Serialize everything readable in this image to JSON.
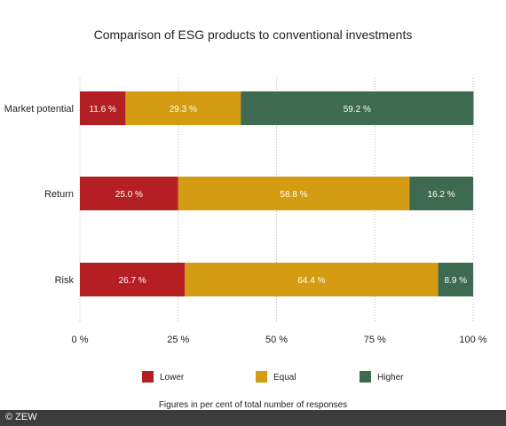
{
  "chart_data": {
    "type": "bar",
    "orientation": "horizontal",
    "stacked": true,
    "title": "Comparison of ESG products to conventional investments",
    "categories": [
      "Market potential",
      "Return",
      "Risk"
    ],
    "series": [
      {
        "name": "Lower",
        "values": [
          11.6,
          25.0,
          26.7
        ],
        "labels": [
          "11.6 %",
          "25.0 %",
          "26.7 %"
        ],
        "color": "#b41f24"
      },
      {
        "name": "Equal",
        "values": [
          29.3,
          58.8,
          64.4
        ],
        "labels": [
          "29.3 %",
          "58.8 %",
          "64.4 %"
        ],
        "color": "#d39c12"
      },
      {
        "name": "Higher",
        "values": [
          59.2,
          16.2,
          8.9
        ],
        "labels": [
          "59.2 %",
          "16.2 %",
          "8.9 %"
        ],
        "color": "#3e6a52"
      }
    ],
    "xlim": [
      0,
      100
    ],
    "xticks": [
      0,
      25,
      50,
      75,
      100
    ],
    "xtick_labels": [
      "0 %",
      "25 %",
      "50 %",
      "75 %",
      "100 %"
    ],
    "grid": true,
    "legend_position": "bottom",
    "note": "Figures in per cent of total number of responses"
  },
  "footer": {
    "credit": "© ZEW"
  }
}
